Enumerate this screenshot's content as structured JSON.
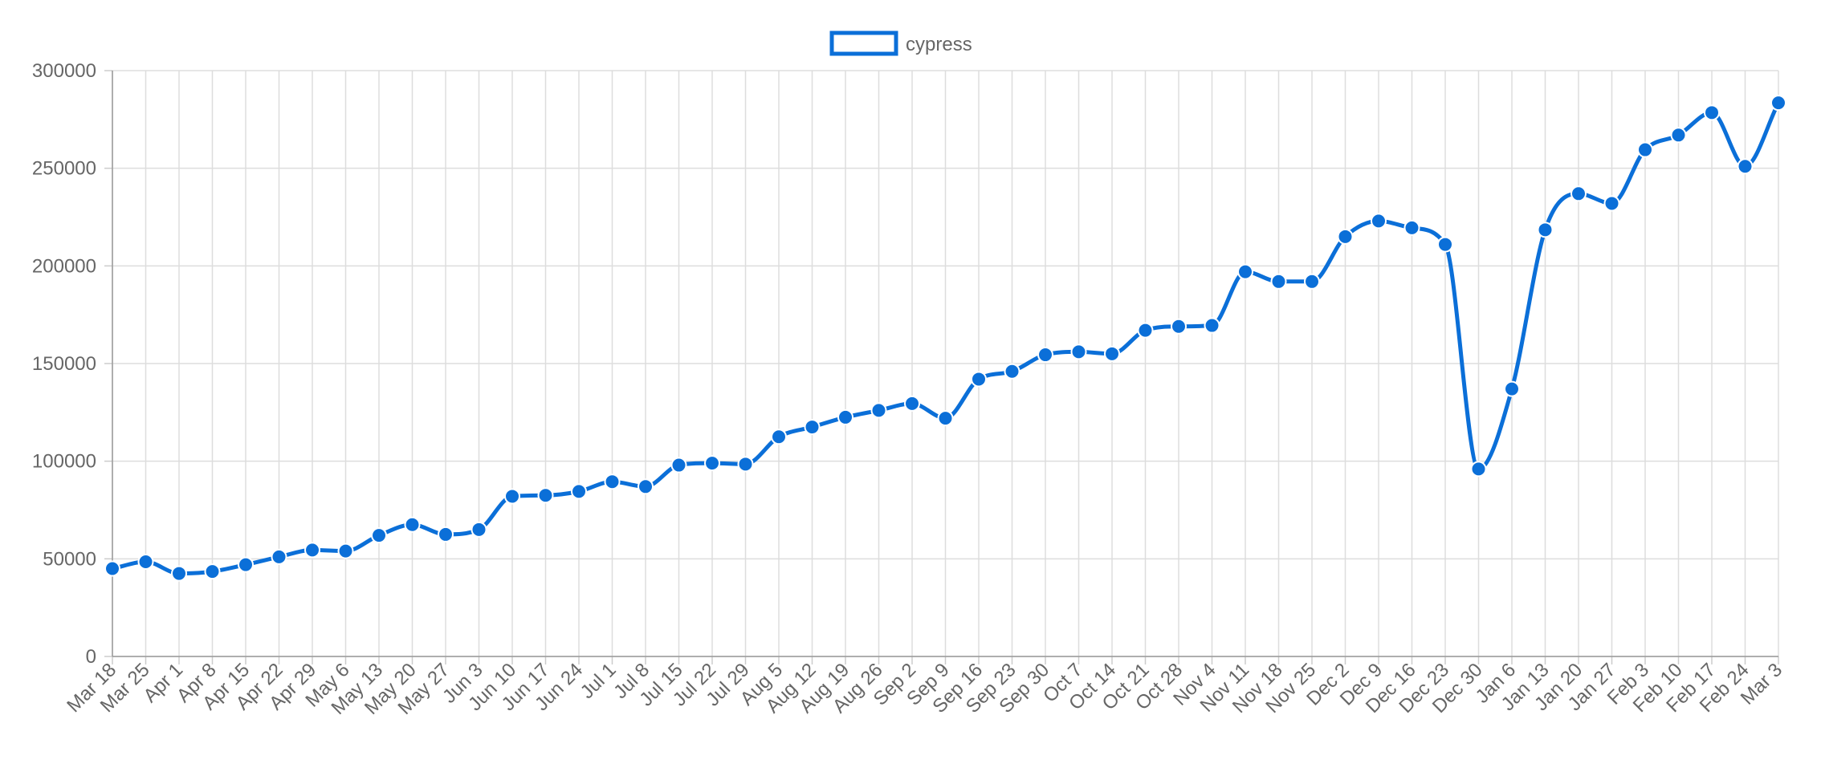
{
  "chart_data": {
    "type": "line",
    "x": [
      "Mar 18",
      "Mar 25",
      "Apr 1",
      "Apr 8",
      "Apr 15",
      "Apr 22",
      "Apr 29",
      "May 6",
      "May 13",
      "May 20",
      "May 27",
      "Jun 3",
      "Jun 10",
      "Jun 17",
      "Jun 24",
      "Jul 1",
      "Jul 8",
      "Jul 15",
      "Jul 22",
      "Jul 29",
      "Aug 5",
      "Aug 12",
      "Aug 19",
      "Aug 26",
      "Sep 2",
      "Sep 9",
      "Sep 16",
      "Sep 23",
      "Sep 30",
      "Oct 7",
      "Oct 14",
      "Oct 21",
      "Oct 28",
      "Nov 4",
      "Nov 11",
      "Nov 18",
      "Nov 25",
      "Dec 2",
      "Dec 9",
      "Dec 16",
      "Dec 23",
      "Dec 30",
      "Jan 6",
      "Jan 13",
      "Jan 20",
      "Jan 27",
      "Feb 3",
      "Feb 10",
      "Feb 17",
      "Feb 24",
      "Mar 3"
    ],
    "series": [
      {
        "name": "cypress",
        "color": "#0b6fd8",
        "values": [
          45000,
          48500,
          42500,
          43500,
          47000,
          51000,
          54500,
          54000,
          62000,
          67500,
          62500,
          65000,
          82000,
          82500,
          84500,
          89500,
          87000,
          98000,
          99000,
          98500,
          112500,
          117500,
          122500,
          126000,
          129500,
          122000,
          142000,
          146000,
          154500,
          156000,
          155000,
          167000,
          169000,
          169500,
          197000,
          192000,
          192000,
          215000,
          223000,
          219500,
          211000,
          96000,
          137000,
          218500,
          237000,
          232000,
          259500,
          267000,
          278500,
          251000,
          283500
        ]
      }
    ],
    "ylim": [
      0,
      300000
    ],
    "yticks": [
      "0",
      "50000",
      "100000",
      "150000",
      "200000",
      "250000",
      "300000"
    ],
    "grid": true,
    "legend": {
      "position": "top",
      "label": "cypress"
    }
  }
}
